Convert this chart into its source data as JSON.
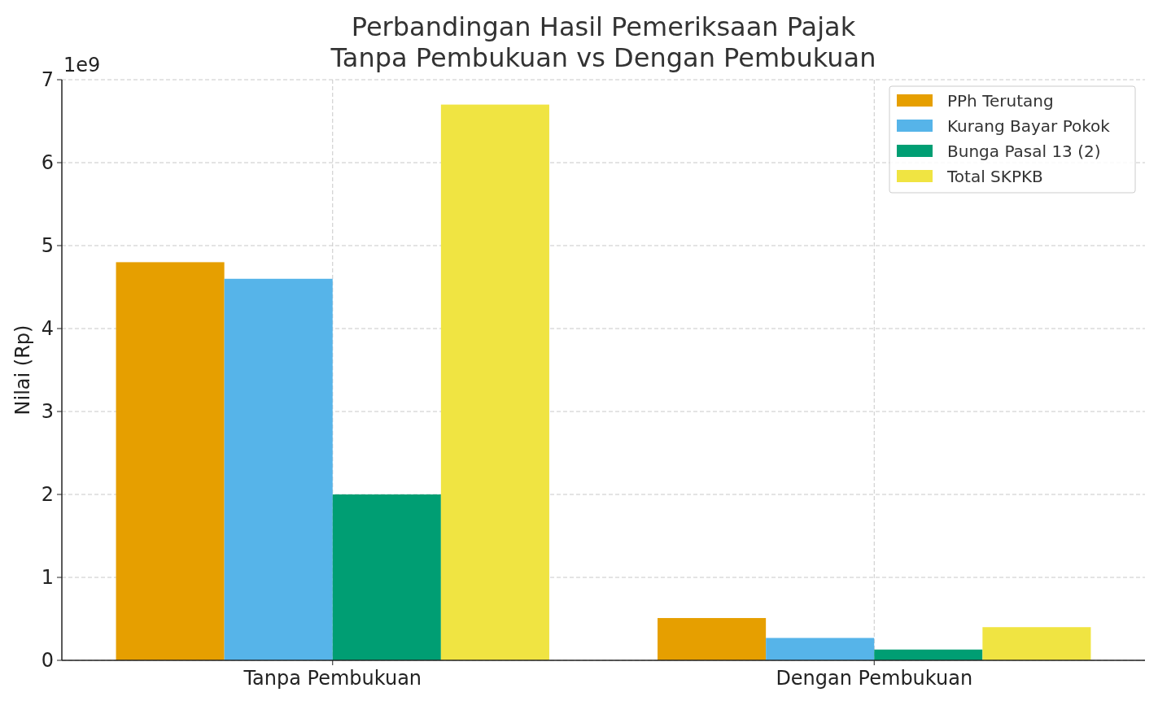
{
  "chart_data": {
    "type": "bar",
    "title": "Perbandingan Hasil Pemeriksaan Pajak\nTanpa Pembukuan vs Dengan Pembukuan",
    "ylabel": "Nilai (Rp)",
    "annotations": [
      "1e9"
    ],
    "categories": [
      "Tanpa Pembukuan",
      "Dengan Pembukuan"
    ],
    "series": [
      {
        "name": "PPh Terutang",
        "color": "#e69f00",
        "values": [
          4.8,
          0.51
        ]
      },
      {
        "name": "Kurang Bayar Pokok",
        "color": "#56b4e9",
        "values": [
          4.6,
          0.27
        ]
      },
      {
        "name": "Bunga Pasal 13 (2)",
        "color": "#009e73",
        "values": [
          2.0,
          0.13
        ]
      },
      {
        "name": "Total SKPKB",
        "color": "#f0e442",
        "values": [
          6.7,
          0.4
        ]
      }
    ],
    "ylim": [
      0,
      7
    ],
    "yticks": [
      0,
      1,
      2,
      3,
      4,
      5,
      6,
      7
    ],
    "grid": true,
    "legend": "top right"
  }
}
